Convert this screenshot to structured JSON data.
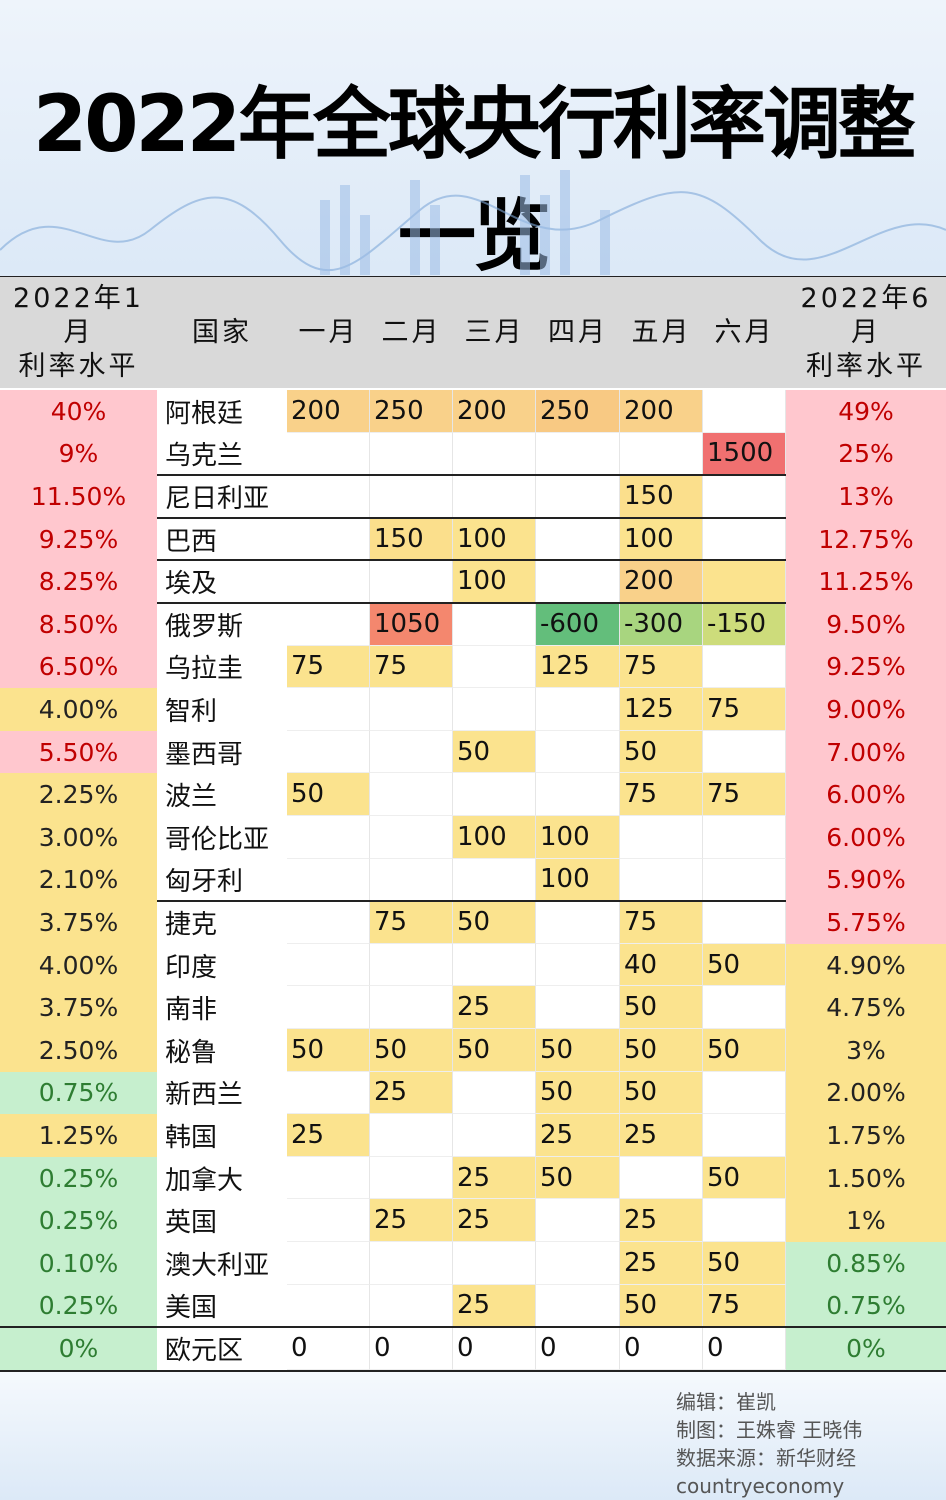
{
  "title": "2022年全球央行利率调整一览",
  "header": {
    "left": [
      "2022年1月",
      "利率水平"
    ],
    "country": "国家",
    "months": [
      "一月",
      "二月",
      "三月",
      "四月",
      "五月",
      "六月"
    ],
    "right": [
      "2022年6月",
      "利率水平"
    ]
  },
  "colors": {
    "pink": "#ffc7ce",
    "yellow": "#fbe38e",
    "green": "#c6efce"
  },
  "rows": [
    {
      "jan": "40%",
      "country": "阿根廷",
      "months": [
        200,
        250,
        200,
        250,
        200,
        null
      ],
      "jun": "49%",
      "left": "pink",
      "right": "pink",
      "cells": [
        "#f9d18a",
        "#f9d18a",
        "#f9d18a",
        "#f8c983",
        "#f9d18a",
        null
      ]
    },
    {
      "jan": "9%",
      "country": "乌克兰",
      "months": [
        null,
        null,
        null,
        null,
        null,
        1500
      ],
      "jun": "25%",
      "left": "pink",
      "right": "pink",
      "cells": [
        null,
        null,
        null,
        null,
        null,
        "#f07070"
      ]
    },
    {
      "jan": "11.50%",
      "country": "尼日利亚",
      "months": [
        null,
        null,
        null,
        null,
        150,
        null
      ],
      "jun": "13%",
      "left": "pink",
      "right": "pink",
      "cells": [
        null,
        null,
        null,
        null,
        "#fbdf8c",
        null
      ]
    },
    {
      "jan": "9.25%",
      "country": "巴西",
      "months": [
        null,
        150,
        100,
        null,
        100,
        null
      ],
      "jun": "12.75%",
      "left": "pink",
      "right": "pink",
      "cells": [
        null,
        "#fbdf8c",
        "#fbe38e",
        null,
        "#fbe38e",
        null
      ]
    },
    {
      "jan": "8.25%",
      "country": "埃及",
      "months": [
        null,
        null,
        100,
        null,
        200,
        null
      ],
      "jun": "11.25%",
      "left": "pink",
      "right": "pink",
      "cells": [
        null,
        null,
        "#fbe38e",
        null,
        "#f9d18a",
        "#fbe38e"
      ]
    },
    {
      "jan": "8.50%",
      "country": "俄罗斯",
      "months": [
        null,
        1050,
        null,
        -600,
        -300,
        -150
      ],
      "jun": "9.50%",
      "left": "pink",
      "right": "pink",
      "cells": [
        null,
        "#f4876e",
        null,
        "#63be7b",
        "#a8d57f",
        "#cddc7b"
      ]
    },
    {
      "jan": "6.50%",
      "country": "乌拉圭",
      "months": [
        75,
        75,
        null,
        125,
        75,
        null
      ],
      "jun": "9.25%",
      "left": "pink",
      "right": "pink",
      "cells": [
        "#fbe38e",
        "#fbe38e",
        null,
        "#fbe38e",
        "#fbe38e",
        null
      ]
    },
    {
      "jan": "4.00%",
      "country": "智利",
      "months": [
        null,
        null,
        null,
        null,
        125,
        75
      ],
      "jun": "9.00%",
      "left": "yellow",
      "right": "pink",
      "cells": [
        null,
        null,
        null,
        null,
        "#fbe38e",
        "#fbe38e"
      ]
    },
    {
      "jan": "5.50%",
      "country": "墨西哥",
      "months": [
        null,
        null,
        50,
        null,
        50,
        null
      ],
      "jun": "7.00%",
      "left": "pink",
      "right": "pink",
      "cells": [
        null,
        null,
        "#fbe38e",
        null,
        "#fbe38e",
        null
      ]
    },
    {
      "jan": "2.25%",
      "country": "波兰",
      "months": [
        50,
        null,
        null,
        null,
        75,
        75
      ],
      "jun": "6.00%",
      "left": "yellow",
      "right": "pink",
      "cells": [
        "#fbe38e",
        null,
        null,
        null,
        "#fbe38e",
        "#fbe38e"
      ]
    },
    {
      "jan": "3.00%",
      "country": "哥伦比亚",
      "months": [
        null,
        null,
        100,
        100,
        null,
        null
      ],
      "jun": "6.00%",
      "left": "yellow",
      "right": "pink",
      "cells": [
        null,
        null,
        "#fbe38e",
        "#fbe38e",
        null,
        null
      ]
    },
    {
      "jan": "2.10%",
      "country": "匈牙利",
      "months": [
        null,
        null,
        null,
        100,
        null,
        null
      ],
      "jun": "5.90%",
      "left": "yellow",
      "right": "pink",
      "cells": [
        null,
        null,
        null,
        "#fbe38e",
        null,
        null
      ]
    },
    {
      "jan": "3.75%",
      "country": "捷克",
      "months": [
        null,
        75,
        50,
        null,
        75,
        null
      ],
      "jun": "5.75%",
      "left": "yellow",
      "right": "pink",
      "cells": [
        null,
        "#fbe38e",
        "#fbe38e",
        null,
        "#fbe38e",
        null
      ]
    },
    {
      "jan": "4.00%",
      "country": "印度",
      "months": [
        null,
        null,
        null,
        null,
        40,
        50
      ],
      "jun": "4.90%",
      "left": "yellow",
      "right": "yellow",
      "cells": [
        null,
        null,
        null,
        null,
        "#fbe38e",
        "#fbe38e"
      ]
    },
    {
      "jan": "3.75%",
      "country": "南非",
      "months": [
        null,
        null,
        25,
        null,
        50,
        null
      ],
      "jun": "4.75%",
      "left": "yellow",
      "right": "yellow",
      "cells": [
        null,
        null,
        "#fbe38e",
        null,
        "#fbe38e",
        null
      ]
    },
    {
      "jan": "2.50%",
      "country": "秘鲁",
      "months": [
        50,
        50,
        50,
        50,
        50,
        50
      ],
      "jun": "3%",
      "left": "yellow",
      "right": "yellow",
      "cells": [
        "#fbe38e",
        "#fbe38e",
        "#fbe38e",
        "#fbe38e",
        "#fbe38e",
        "#fbe38e"
      ]
    },
    {
      "jan": "0.75%",
      "country": "新西兰",
      "months": [
        null,
        25,
        null,
        50,
        50,
        null
      ],
      "jun": "2.00%",
      "left": "green",
      "right": "yellow",
      "cells": [
        null,
        "#fbe38e",
        null,
        "#fbe38e",
        "#fbe38e",
        null
      ]
    },
    {
      "jan": "1.25%",
      "country": "韩国",
      "months": [
        25,
        null,
        null,
        25,
        25,
        null
      ],
      "jun": "1.75%",
      "left": "yellow",
      "right": "yellow",
      "cells": [
        "#fbe38e",
        null,
        null,
        "#fbe38e",
        "#fbe38e",
        null
      ]
    },
    {
      "jan": "0.25%",
      "country": "加拿大",
      "months": [
        null,
        null,
        25,
        50,
        null,
        50
      ],
      "jun": "1.50%",
      "left": "green",
      "right": "yellow",
      "cells": [
        null,
        null,
        "#fbe38e",
        "#fbe38e",
        null,
        "#fbe38e"
      ]
    },
    {
      "jan": "0.25%",
      "country": "英国",
      "months": [
        null,
        25,
        25,
        null,
        25,
        null
      ],
      "jun": "1%",
      "left": "green",
      "right": "yellow",
      "cells": [
        null,
        "#fbe38e",
        "#fbe38e",
        null,
        "#fbe38e",
        null
      ]
    },
    {
      "jan": "0.10%",
      "country": "澳大利亚",
      "months": [
        null,
        null,
        null,
        null,
        25,
        50
      ],
      "jun": "0.85%",
      "left": "green",
      "right": "green",
      "cells": [
        null,
        null,
        null,
        null,
        "#fbe38e",
        "#fbe38e"
      ]
    },
    {
      "jan": "0.25%",
      "country": "美国",
      "months": [
        null,
        null,
        25,
        null,
        50,
        75
      ],
      "jun": "0.75%",
      "left": "green",
      "right": "green",
      "cells": [
        null,
        null,
        "#fbe38e",
        null,
        "#fbe38e",
        "#fbe38e"
      ]
    },
    {
      "jan": "0%",
      "country": "欧元区",
      "months": [
        0,
        0,
        0,
        0,
        0,
        0
      ],
      "jun": "0%",
      "left": "green",
      "right": "green",
      "cells": [
        null,
        null,
        null,
        null,
        null,
        null
      ]
    }
  ],
  "credits": [
    "编辑：崔凯",
    "制图：王姝睿 王晓伟",
    "数据来源：新华财经",
    "countryeconomy"
  ]
}
